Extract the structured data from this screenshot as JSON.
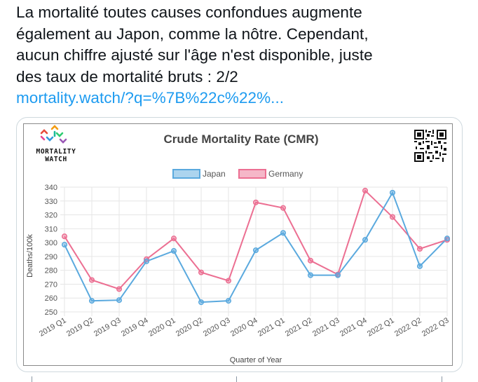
{
  "tweet": {
    "lines": [
      "La mortalité toutes causes confondues augmente",
      "également au Japon, comme la nôtre. Cependant,",
      "aucun chiffre ajusté sur l'âge n'est disponible, juste",
      "des taux de mortalité bruts : 2/2"
    ],
    "link": "mortality.watch/?q=%7B%22c%22%..."
  },
  "logo": {
    "line1": "MORTALITY",
    "line2": "WATCH"
  },
  "colors": {
    "link": "#1d9bf0",
    "japan": "#5aa9de",
    "germany": "#ec6f92"
  },
  "chart_data": {
    "type": "line",
    "title": "Crude Mortality Rate (CMR)",
    "xlabel": "Quarter of Year",
    "ylabel": "Deaths/100k",
    "categories": [
      "2019 Q1",
      "2019 Q2",
      "2019 Q3",
      "2019 Q4",
      "2020 Q1",
      "2020 Q2",
      "2020 Q3",
      "2020 Q4",
      "2021 Q1",
      "2021 Q2",
      "2021 Q3",
      "2021 Q4",
      "2022 Q1",
      "2022 Q2",
      "2022 Q3"
    ],
    "series": [
      {
        "name": "Japan",
        "color": "#5aa9de",
        "values": [
          298.5,
          258,
          258.5,
          286.5,
          294,
          257,
          258,
          294.5,
          307,
          276.5,
          276.5,
          302,
          336,
          283,
          303
        ]
      },
      {
        "name": "Germany",
        "color": "#ec6f92",
        "values": [
          304.5,
          273,
          266.5,
          288,
          303,
          278.5,
          272.5,
          329,
          325,
          287,
          277,
          337.5,
          318.5,
          295.5,
          302
        ]
      }
    ],
    "yticks": [
      250,
      260,
      270,
      280,
      290,
      300,
      310,
      320,
      330,
      340
    ],
    "ylim": [
      250,
      340
    ],
    "grid": true,
    "legend": "top-center"
  }
}
